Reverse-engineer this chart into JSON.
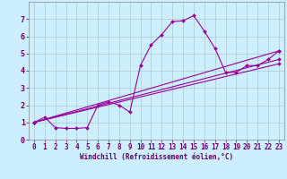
{
  "title": "",
  "xlabel": "Windchill (Refroidissement éolien,°C)",
  "ylabel": "",
  "bg_color": "#cceeff",
  "line_color": "#990099",
  "grid_color": "#aacccc",
  "spine_color": "#888888",
  "xlim": [
    -0.5,
    23.5
  ],
  "ylim": [
    0,
    8
  ],
  "xticks": [
    0,
    1,
    2,
    3,
    4,
    5,
    6,
    7,
    8,
    9,
    10,
    11,
    12,
    13,
    14,
    15,
    16,
    17,
    18,
    19,
    20,
    21,
    22,
    23
  ],
  "yticks": [
    0,
    1,
    2,
    3,
    4,
    5,
    6,
    7
  ],
  "line1_x": [
    0,
    1,
    2,
    3,
    4,
    5,
    6,
    7,
    8,
    9,
    10,
    11,
    12,
    13,
    14,
    15,
    16,
    17,
    18,
    19,
    20,
    21,
    22,
    23
  ],
  "line1_y": [
    1.0,
    1.3,
    0.7,
    0.65,
    0.65,
    0.7,
    2.0,
    2.2,
    2.0,
    1.6,
    4.3,
    5.5,
    6.1,
    6.85,
    6.9,
    7.2,
    6.3,
    5.3,
    3.9,
    3.9,
    4.3,
    4.3,
    4.65,
    5.15
  ],
  "line2_x": [
    0,
    23
  ],
  "line2_y": [
    1.0,
    4.4
  ],
  "line3_x": [
    0,
    23
  ],
  "line3_y": [
    1.0,
    4.65
  ],
  "line4_x": [
    0,
    23
  ],
  "line4_y": [
    1.0,
    5.15
  ],
  "marker": "D",
  "markersize": 2.0,
  "linewidth": 0.8,
  "tick_fontsize": 5.5,
  "xlabel_fontsize": 5.5
}
